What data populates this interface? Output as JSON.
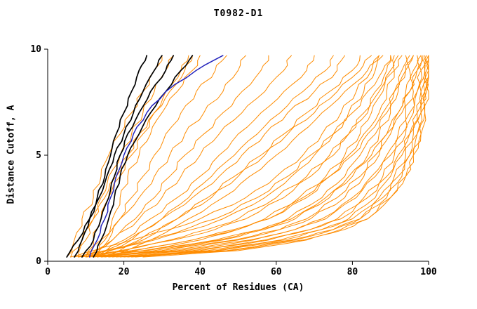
{
  "chart_data": {
    "type": "line",
    "title": "T0982-D1",
    "xlabel": "Percent of Residues (CA)",
    "ylabel": "Distance Cutoff, A",
    "xlim": [
      0,
      100
    ],
    "ylim": [
      0,
      10
    ],
    "xticks": [
      0,
      20,
      40,
      60,
      80,
      100
    ],
    "yticks": [
      0,
      5,
      10
    ],
    "grid": false,
    "legend": "none",
    "background": "#ffffff",
    "axis_color": "#000000",
    "colors": {
      "orange": "#ff8c00",
      "black": "#000000",
      "blue": "#2222bb"
    },
    "line_widths": {
      "orange": 1,
      "black": 1.7,
      "blue": 1.5
    },
    "ysets": {
      "A": [
        0.2,
        1,
        2,
        3,
        4,
        5,
        6,
        7,
        8,
        9,
        9.7
      ],
      "B": [
        0.2,
        0.5,
        1,
        1.5,
        2,
        3,
        4,
        5,
        6,
        7,
        8,
        9,
        9.7
      ]
    },
    "series": [
      {
        "color": "orange",
        "yset": "B",
        "x": [
          7,
          15,
          28,
          38,
          46,
          57,
          64,
          70,
          75,
          79,
          83,
          86,
          88
        ]
      },
      {
        "color": "orange",
        "yset": "B",
        "x": [
          9,
          19,
          33,
          44,
          52,
          62,
          69,
          75,
          79,
          83,
          86,
          89,
          90
        ]
      },
      {
        "color": "orange",
        "yset": "B",
        "x": [
          11,
          23,
          38,
          49,
          57,
          66,
          73,
          78,
          82,
          85,
          88,
          90,
          91
        ]
      },
      {
        "color": "orange",
        "yset": "B",
        "x": [
          8,
          22,
          38,
          50,
          58,
          68,
          74,
          79,
          83,
          87,
          89,
          91,
          92
        ]
      },
      {
        "color": "orange",
        "yset": "B",
        "x": [
          13,
          28,
          45,
          56,
          63,
          72,
          78,
          82,
          86,
          89,
          91,
          93,
          94
        ]
      },
      {
        "color": "orange",
        "yset": "B",
        "x": [
          10,
          26,
          44,
          56,
          64,
          73,
          79,
          84,
          87,
          90,
          92,
          94,
          95
        ]
      },
      {
        "color": "orange",
        "yset": "B",
        "x": [
          15,
          32,
          50,
          61,
          68,
          76,
          82,
          86,
          89,
          92,
          94,
          95,
          96
        ]
      },
      {
        "color": "orange",
        "yset": "B",
        "x": [
          12,
          30,
          49,
          61,
          69,
          78,
          83,
          87,
          90,
          93,
          95,
          96,
          97
        ]
      },
      {
        "color": "orange",
        "yset": "B",
        "x": [
          17,
          36,
          54,
          65,
          72,
          80,
          85,
          89,
          92,
          94,
          96,
          97,
          98
        ]
      },
      {
        "color": "orange",
        "yset": "B",
        "x": [
          14,
          34,
          53,
          65,
          73,
          81,
          86,
          90,
          93,
          95,
          97,
          98,
          98.5
        ]
      },
      {
        "color": "orange",
        "yset": "B",
        "x": [
          19,
          40,
          58,
          69,
          76,
          83,
          88,
          91,
          94,
          96,
          97,
          98,
          99
        ]
      },
      {
        "color": "orange",
        "yset": "B",
        "x": [
          16,
          38,
          57,
          69,
          77,
          84,
          89,
          92,
          95,
          97,
          98,
          99,
          99.5
        ]
      },
      {
        "color": "orange",
        "yset": "B",
        "x": [
          21,
          44,
          62,
          72,
          79,
          86,
          90,
          93,
          95,
          97,
          98,
          99,
          100
        ]
      },
      {
        "color": "orange",
        "yset": "B",
        "x": [
          18,
          42,
          61,
          72,
          80,
          87,
          91,
          94,
          96,
          98,
          99,
          99.5,
          100
        ]
      },
      {
        "color": "orange",
        "yset": "B",
        "x": [
          23,
          47,
          65,
          75,
          82,
          88,
          92,
          95,
          97,
          98,
          99,
          100,
          100
        ]
      },
      {
        "color": "orange",
        "yset": "B",
        "x": [
          20,
          45,
          64,
          75,
          82,
          89,
          93,
          95,
          97,
          98,
          99,
          100,
          100
        ]
      },
      {
        "color": "orange",
        "yset": "B",
        "x": [
          25,
          50,
          68,
          78,
          84,
          90,
          94,
          96,
          98,
          99,
          99.5,
          100,
          100
        ]
      },
      {
        "color": "orange",
        "yset": "B",
        "x": [
          22,
          48,
          67,
          77,
          84,
          90,
          94,
          96,
          98,
          99,
          100,
          100,
          100
        ]
      },
      {
        "color": "orange",
        "yset": "B",
        "x": [
          6,
          12,
          22,
          32,
          40,
          52,
          60,
          67,
          72,
          77,
          81,
          85,
          87
        ]
      },
      {
        "color": "orange",
        "yset": "B",
        "x": [
          8,
          16,
          27,
          36,
          44,
          55,
          63,
          69,
          75,
          80,
          84,
          88,
          90
        ]
      },
      {
        "color": "orange",
        "yset": "B",
        "x": [
          10,
          20,
          32,
          42,
          50,
          60,
          68,
          74,
          79,
          84,
          87,
          91,
          93
        ]
      },
      {
        "color": "orange",
        "yset": "B",
        "x": [
          12,
          25,
          40,
          50,
          58,
          67,
          74,
          80,
          84,
          88,
          91,
          94,
          96
        ]
      },
      {
        "color": "orange",
        "yset": "B",
        "x": [
          14,
          30,
          46,
          57,
          65,
          74,
          80,
          85,
          89,
          92,
          95,
          97,
          98
        ]
      },
      {
        "color": "orange",
        "yset": "A",
        "x": [
          9,
          14,
          19,
          24,
          28,
          32,
          36,
          41,
          46,
          50,
          52
        ]
      },
      {
        "color": "orange",
        "yset": "A",
        "x": [
          11,
          17,
          23,
          28,
          32,
          36,
          41,
          46,
          51,
          56,
          58
        ]
      },
      {
        "color": "orange",
        "yset": "A",
        "x": [
          10,
          17,
          24,
          30,
          35,
          40,
          45,
          51,
          57,
          62,
          64
        ]
      },
      {
        "color": "orange",
        "yset": "A",
        "x": [
          12,
          20,
          27,
          34,
          40,
          45,
          50,
          56,
          62,
          68,
          70
        ]
      },
      {
        "color": "orange",
        "yset": "A",
        "x": [
          14,
          22,
          30,
          37,
          43,
          49,
          55,
          61,
          67,
          73,
          75
        ]
      },
      {
        "color": "orange",
        "yset": "A",
        "x": [
          11,
          21,
          30,
          38,
          45,
          51,
          57,
          63,
          70,
          76,
          78
        ]
      },
      {
        "color": "orange",
        "yset": "A",
        "x": [
          15,
          25,
          34,
          42,
          49,
          56,
          62,
          68,
          74,
          80,
          82
        ]
      },
      {
        "color": "orange",
        "yset": "A",
        "x": [
          13,
          24,
          34,
          43,
          50,
          57,
          63,
          70,
          76,
          82,
          85
        ]
      },
      {
        "color": "orange",
        "yset": "A",
        "x": [
          16,
          27,
          37,
          46,
          53,
          60,
          66,
          72,
          78,
          84,
          87
        ]
      },
      {
        "color": "orange",
        "yset": "A",
        "x": [
          5,
          7,
          9,
          12,
          14,
          16,
          19,
          22,
          25,
          28,
          30
        ]
      },
      {
        "color": "orange",
        "yset": "A",
        "x": [
          8,
          10,
          12,
          14,
          16,
          19,
          22,
          25,
          28,
          31,
          33
        ]
      },
      {
        "color": "orange",
        "yset": "A",
        "x": [
          10,
          12,
          14,
          16,
          19,
          22,
          25,
          28,
          31,
          35,
          37
        ]
      },
      {
        "color": "orange",
        "yset": "A",
        "x": [
          12,
          15,
          17,
          19,
          21,
          24,
          27,
          30,
          34,
          38,
          40
        ]
      },
      {
        "color": "orange",
        "yset": "A",
        "x": [
          13,
          16,
          19,
          22,
          25,
          28,
          31,
          35,
          39,
          44,
          47
        ]
      },
      {
        "color": "orange",
        "yset": "A",
        "x": [
          6,
          9,
          12,
          15,
          18,
          21,
          24,
          28,
          32,
          36,
          38
        ]
      },
      {
        "color": "black",
        "yset": "A",
        "x": [
          7,
          9,
          11,
          13,
          15,
          16.5,
          18,
          20,
          22,
          24,
          26
        ]
      },
      {
        "color": "black",
        "yset": "A",
        "x": [
          5,
          8,
          11,
          13.5,
          15.5,
          17.5,
          20,
          22.5,
          25,
          28,
          30
        ]
      },
      {
        "color": "black",
        "yset": "A",
        "x": [
          9,
          12,
          14,
          16,
          17.5,
          19,
          21,
          24,
          27,
          31,
          33
        ]
      },
      {
        "color": "black",
        "yset": "A",
        "x": [
          12,
          14,
          16,
          17.5,
          19,
          21,
          24,
          27,
          31,
          35,
          38
        ]
      },
      {
        "color": "blue",
        "yset": "A",
        "x": [
          11,
          13,
          15,
          16.5,
          18,
          20,
          22.5,
          26,
          31,
          39,
          46
        ]
      }
    ]
  }
}
